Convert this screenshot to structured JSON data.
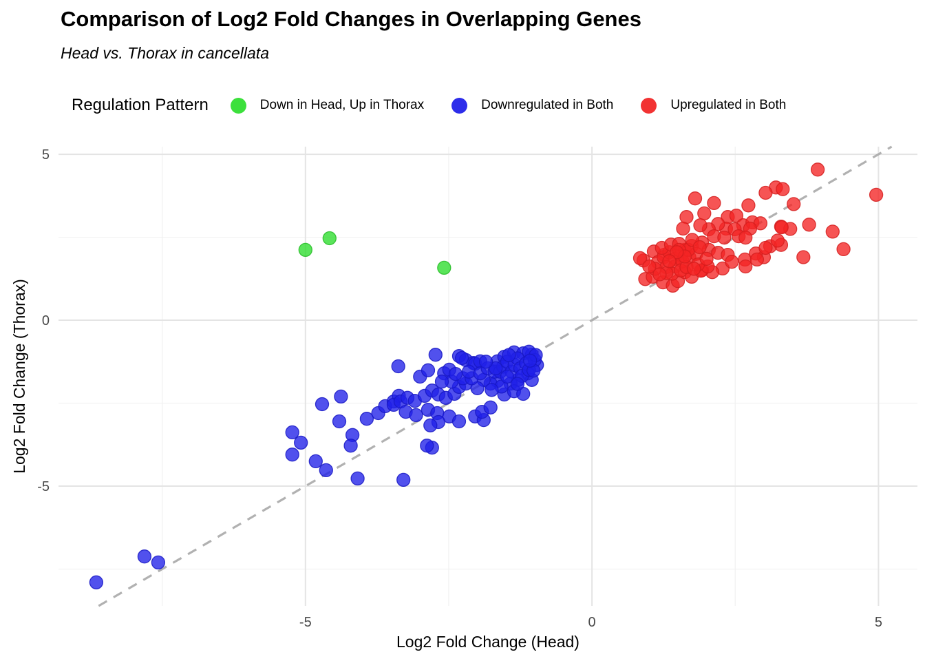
{
  "header": {
    "title": "Comparison of Log2 Fold Changes in Overlapping Genes",
    "subtitle": "Head vs. Thorax in cancellata"
  },
  "legend": {
    "title": "Regulation Pattern",
    "items": [
      {
        "label": "Down in Head, Up in Thorax",
        "color": "#3ce03c"
      },
      {
        "label": "Downregulated in Both",
        "color": "#2d2dea"
      },
      {
        "label": "Upregulated in Both",
        "color": "#f23333"
      }
    ]
  },
  "chart_data": {
    "type": "scatter",
    "title": "Comparison of Log2 Fold Changes in Overlapping Genes",
    "subtitle": "Head vs. Thorax in cancellata",
    "xlabel": "Log2 Fold Change (Head)",
    "ylabel": "Log2 Fold Change (Thorax)",
    "xlim": [
      -9.31,
      5.68
    ],
    "ylim": [
      -8.61,
      5.23
    ],
    "x_major_ticks": [
      -5,
      0,
      5
    ],
    "x_minor_ticks": [
      -7.5,
      -2.5,
      2.5
    ],
    "y_major_ticks": [
      5,
      0,
      -5
    ],
    "y_minor_ticks": [
      2.5,
      -2.5,
      -7.5
    ],
    "grid": "major+minor on white, no axis lines",
    "legend_position": "top",
    "point_opacity": 0.78,
    "point_radius_px": 9.5,
    "identity_line": {
      "type": "y=x",
      "dashed": true,
      "color": "#a9a9a9"
    },
    "colors": {
      "grid_major": "#e4e4e4",
      "grid_minor": "#f1f1f1",
      "tick_text": "#4a4a4a",
      "axis_title_text": "#000000"
    },
    "series": [
      {
        "name": "Down in Head, Up in Thorax",
        "fill": "#2bdc2b",
        "stroke": "#24bb24",
        "points": [
          [
            -5.0,
            2.12
          ],
          [
            -4.58,
            2.47
          ],
          [
            -2.58,
            1.58
          ]
        ]
      },
      {
        "name": "Downregulated in Both",
        "fill": "#2020e8",
        "stroke": "#1818c4",
        "points": [
          [
            -8.65,
            -7.9
          ],
          [
            -7.81,
            -7.12
          ],
          [
            -7.57,
            -7.3
          ],
          [
            -5.23,
            -3.38
          ],
          [
            -5.08,
            -3.69
          ],
          [
            -5.23,
            -4.05
          ],
          [
            -4.82,
            -4.25
          ],
          [
            -4.64,
            -4.52
          ],
          [
            -4.71,
            -2.53
          ],
          [
            -4.38,
            -2.3
          ],
          [
            -4.41,
            -3.05
          ],
          [
            -4.18,
            -3.46
          ],
          [
            -4.21,
            -3.78
          ],
          [
            -4.09,
            -4.77
          ],
          [
            -3.29,
            -4.81
          ],
          [
            -3.93,
            -2.97
          ],
          [
            -3.73,
            -2.8
          ],
          [
            -3.61,
            -2.59
          ],
          [
            -2.79,
            -3.84
          ],
          [
            -2.88,
            -3.78
          ],
          [
            -3.46,
            -2.45
          ],
          [
            -3.37,
            -2.28
          ],
          [
            -3.46,
            -2.55
          ],
          [
            -3.34,
            -2.45
          ],
          [
            -3.22,
            -2.34
          ],
          [
            -3.09,
            -2.43
          ],
          [
            -3.25,
            -2.76
          ],
          [
            -3.07,
            -2.86
          ],
          [
            -2.92,
            -2.28
          ],
          [
            -2.86,
            -2.7
          ],
          [
            -2.7,
            -2.8
          ],
          [
            -2.49,
            -2.9
          ],
          [
            -2.32,
            -3.05
          ],
          [
            -2.68,
            -3.07
          ],
          [
            -2.82,
            -3.17
          ],
          [
            -2.04,
            -2.9
          ],
          [
            -1.89,
            -3.01
          ],
          [
            -1.92,
            -2.76
          ],
          [
            -1.77,
            -2.63
          ],
          [
            -2.79,
            -2.12
          ],
          [
            -2.68,
            -2.24
          ],
          [
            -2.55,
            -2.34
          ],
          [
            -2.4,
            -2.22
          ],
          [
            -2.32,
            -2.01
          ],
          [
            -2.2,
            -1.91
          ],
          [
            -3.38,
            -1.39
          ],
          [
            -3.0,
            -1.7
          ],
          [
            -2.86,
            -1.51
          ],
          [
            -2.58,
            -1.6
          ],
          [
            -2.49,
            -1.49
          ],
          [
            -2.73,
            -1.04
          ],
          [
            -2.32,
            -1.08
          ],
          [
            -2.2,
            -1.2
          ],
          [
            -2.07,
            -1.29
          ],
          [
            -2.27,
            -1.14
          ],
          [
            -2.04,
            -1.31
          ],
          [
            -1.95,
            -1.24
          ],
          [
            -1.65,
            -1.24
          ],
          [
            -1.53,
            -1.1
          ],
          [
            -1.36,
            -0.97
          ],
          [
            -1.2,
            -1.0
          ],
          [
            -1.05,
            -1.04
          ],
          [
            -0.96,
            -1.35
          ],
          [
            -1.12,
            -1.6
          ],
          [
            -1.05,
            -1.8
          ],
          [
            -1.29,
            -1.8
          ],
          [
            -1.42,
            -1.91
          ],
          [
            -1.65,
            -1.83
          ],
          [
            -1.77,
            -1.91
          ],
          [
            -1.89,
            -1.8
          ],
          [
            -1.53,
            -2.24
          ],
          [
            -1.36,
            -2.14
          ],
          [
            -1.2,
            -2.22
          ],
          [
            -1.58,
            -2.0
          ],
          [
            -1.75,
            -2.1
          ],
          [
            -2.0,
            -2.05
          ],
          [
            -2.25,
            -1.75
          ],
          [
            -2.45,
            -1.85
          ],
          [
            -2.1,
            -1.75
          ],
          [
            -2.15,
            -1.55
          ],
          [
            -1.95,
            -1.6
          ],
          [
            -1.82,
            -1.45
          ],
          [
            -1.7,
            -1.55
          ],
          [
            -1.6,
            -1.55
          ],
          [
            -1.55,
            -1.4
          ],
          [
            -1.48,
            -1.25
          ],
          [
            -1.4,
            -1.55
          ],
          [
            -1.35,
            -1.35
          ],
          [
            -1.3,
            -1.15
          ],
          [
            -1.25,
            -1.45
          ],
          [
            -1.22,
            -1.68
          ],
          [
            -1.15,
            -1.3
          ],
          [
            -1.1,
            -1.5
          ],
          [
            -1.1,
            -0.95
          ],
          [
            -1.0,
            -1.2
          ],
          [
            -1.48,
            -1.7
          ],
          [
            -1.02,
            -1.52
          ],
          [
            -0.98,
            -1.05
          ],
          [
            -1.45,
            -1.05
          ],
          [
            -1.68,
            -1.45
          ],
          [
            -1.85,
            -1.25
          ],
          [
            -2.38,
            -1.62
          ],
          [
            -2.62,
            -1.85
          ],
          [
            -1.3,
            -1.92
          ],
          [
            -1.08,
            -1.22
          ]
        ]
      },
      {
        "name": "Upregulated in Both",
        "fill": "#f32424",
        "stroke": "#d41d1d",
        "points": [
          [
            3.94,
            4.54
          ],
          [
            4.96,
            3.78
          ],
          [
            3.21,
            4.0
          ],
          [
            3.33,
            3.95
          ],
          [
            3.03,
            3.84
          ],
          [
            3.52,
            3.5
          ],
          [
            1.8,
            3.67
          ],
          [
            2.13,
            3.53
          ],
          [
            2.73,
            3.46
          ],
          [
            2.37,
            3.11
          ],
          [
            2.52,
            3.15
          ],
          [
            1.65,
            3.11
          ],
          [
            1.96,
            3.22
          ],
          [
            2.64,
            2.86
          ],
          [
            2.8,
            2.95
          ],
          [
            2.94,
            2.92
          ],
          [
            3.3,
            2.82
          ],
          [
            3.46,
            2.75
          ],
          [
            3.79,
            2.88
          ],
          [
            4.2,
            2.67
          ],
          [
            4.39,
            2.14
          ],
          [
            3.31,
            2.8
          ],
          [
            3.11,
            2.23
          ],
          [
            3.3,
            2.27
          ],
          [
            3.24,
            2.4
          ],
          [
            3.69,
            1.9
          ],
          [
            3.0,
            1.9
          ],
          [
            2.34,
            2.76
          ],
          [
            2.49,
            2.74
          ],
          [
            2.2,
            2.9
          ],
          [
            2.04,
            2.74
          ],
          [
            1.89,
            2.86
          ],
          [
            1.59,
            2.76
          ],
          [
            2.13,
            2.53
          ],
          [
            2.31,
            2.49
          ],
          [
            2.56,
            2.53
          ],
          [
            2.76,
            2.76
          ],
          [
            2.68,
            2.49
          ],
          [
            1.92,
            2.34
          ],
          [
            1.74,
            2.24
          ],
          [
            1.62,
            2.12
          ],
          [
            2.04,
            2.12
          ],
          [
            2.2,
            2.03
          ],
          [
            2.37,
            1.97
          ],
          [
            2.67,
            1.83
          ],
          [
            2.86,
            2.01
          ],
          [
            3.03,
            2.18
          ],
          [
            2.68,
            1.62
          ],
          [
            2.88,
            1.83
          ],
          [
            2.28,
            1.56
          ],
          [
            2.44,
            1.76
          ],
          [
            2.1,
            1.45
          ],
          [
            1.92,
            1.51
          ],
          [
            0.9,
            1.8
          ],
          [
            1.08,
            2.07
          ],
          [
            1.26,
            1.97
          ],
          [
            0.93,
            1.24
          ],
          [
            1.06,
            1.31
          ],
          [
            1.24,
            1.14
          ],
          [
            1.41,
            1.04
          ],
          [
            1.5,
            1.18
          ],
          [
            1.62,
            1.45
          ],
          [
            1.74,
            1.31
          ],
          [
            1.9,
            1.49
          ],
          [
            2.02,
            1.62
          ],
          [
            0.84,
            1.87
          ],
          [
            1.15,
            1.75
          ],
          [
            1.25,
            1.9
          ],
          [
            1.35,
            2.05
          ],
          [
            1.45,
            1.85
          ],
          [
            1.55,
            1.95
          ],
          [
            1.3,
            1.6
          ],
          [
            1.45,
            1.62
          ],
          [
            1.58,
            1.78
          ],
          [
            1.7,
            1.9
          ],
          [
            1.82,
            2.0
          ],
          [
            1.1,
            1.55
          ],
          [
            1.0,
            1.62
          ],
          [
            1.22,
            2.18
          ],
          [
            1.38,
            2.28
          ],
          [
            1.52,
            2.3
          ],
          [
            1.68,
            2.12
          ],
          [
            1.85,
            1.68
          ],
          [
            2.0,
            1.85
          ],
          [
            1.4,
            1.4
          ],
          [
            1.55,
            1.5
          ],
          [
            1.65,
            1.6
          ],
          [
            1.78,
            1.55
          ],
          [
            1.3,
            1.42
          ],
          [
            1.18,
            1.38
          ],
          [
            1.52,
            2.12
          ],
          [
            1.62,
            1.92
          ],
          [
            1.75,
            2.42
          ],
          [
            1.88,
            2.2
          ],
          [
            1.48,
            2.05
          ],
          [
            1.35,
            1.78
          ]
        ]
      }
    ]
  }
}
